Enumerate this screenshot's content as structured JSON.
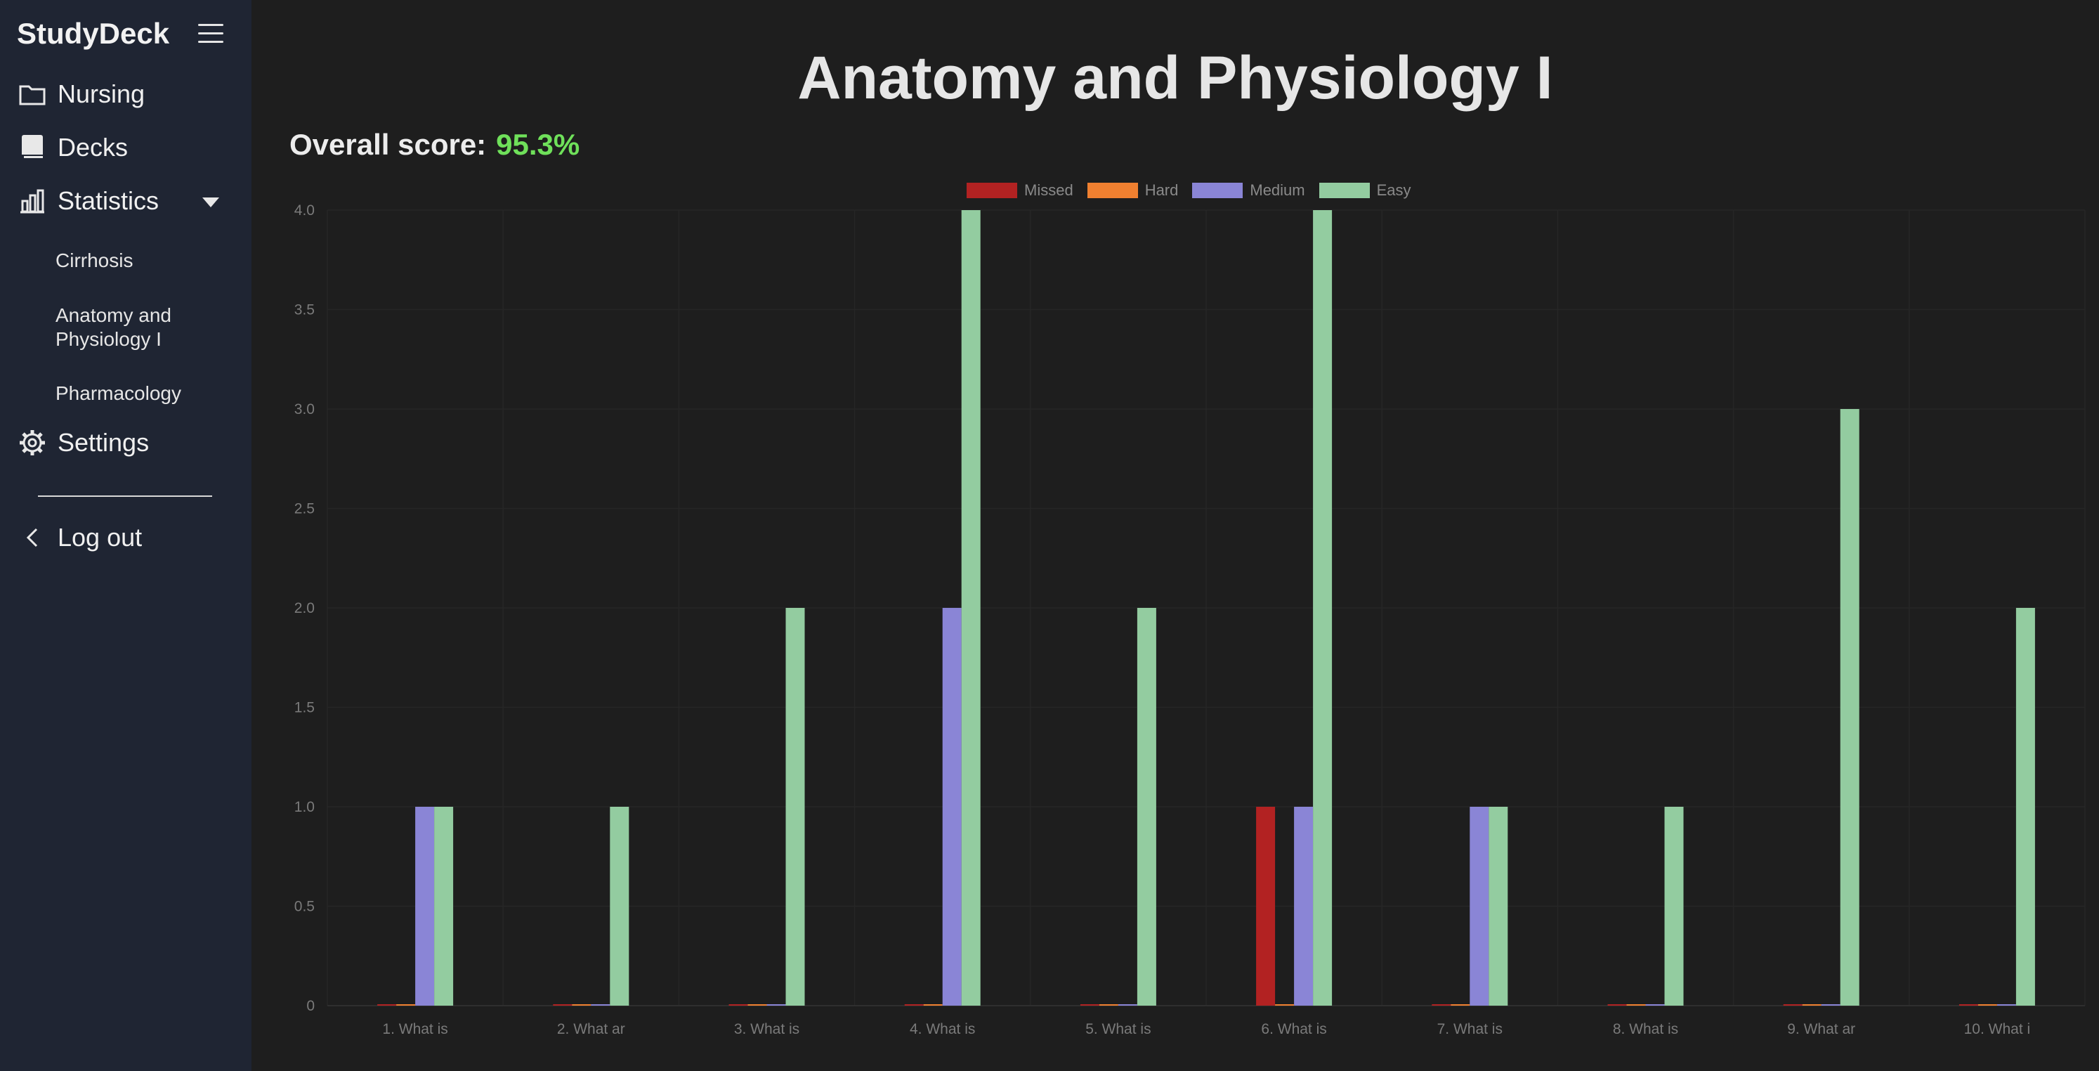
{
  "sidebar": {
    "brand": "StudyDeck",
    "items": [
      {
        "label": "Nursing",
        "icon": "folder-icon"
      },
      {
        "label": "Decks",
        "icon": "book-icon"
      },
      {
        "label": "Statistics",
        "icon": "bar-chart-icon"
      }
    ],
    "sub_items": [
      "Cirrhosis",
      "Anatomy and Physiology I",
      "Pharmacology"
    ],
    "settings": "Settings",
    "logout": "Log out"
  },
  "page": {
    "title": "Anatomy and Physiology I",
    "score_label": "Overall score:",
    "score_value": "95.3%"
  },
  "colors": {
    "missed": "#b22222",
    "hard": "#f08030",
    "medium": "#8a85d6",
    "easy": "#93cca0",
    "score": "#6fe05a"
  },
  "chart_data": {
    "type": "bar",
    "categories": [
      "1. What is",
      "2. What ar",
      "3. What is",
      "4. What is",
      "5. What is",
      "6. What is",
      "7. What is",
      "8. What is",
      "9. What ar",
      "10. What i"
    ],
    "series": [
      {
        "name": "Missed",
        "values": [
          0,
          0,
          0,
          0,
          0,
          1,
          0,
          0,
          0,
          0
        ]
      },
      {
        "name": "Hard",
        "values": [
          0,
          0,
          0,
          0,
          0,
          0,
          0,
          0,
          0,
          0
        ]
      },
      {
        "name": "Medium",
        "values": [
          1,
          0,
          0,
          2,
          0,
          1,
          1,
          0,
          0,
          0
        ]
      },
      {
        "name": "Easy",
        "values": [
          1,
          1,
          2,
          4,
          2,
          4,
          1,
          1,
          3,
          2
        ]
      }
    ],
    "ylim": [
      0,
      4
    ],
    "yticks": [
      "0",
      "0.5",
      "1.0",
      "1.5",
      "2.0",
      "2.5",
      "3.0",
      "3.5",
      "4.0"
    ],
    "grid": true,
    "legend": "top-center"
  }
}
